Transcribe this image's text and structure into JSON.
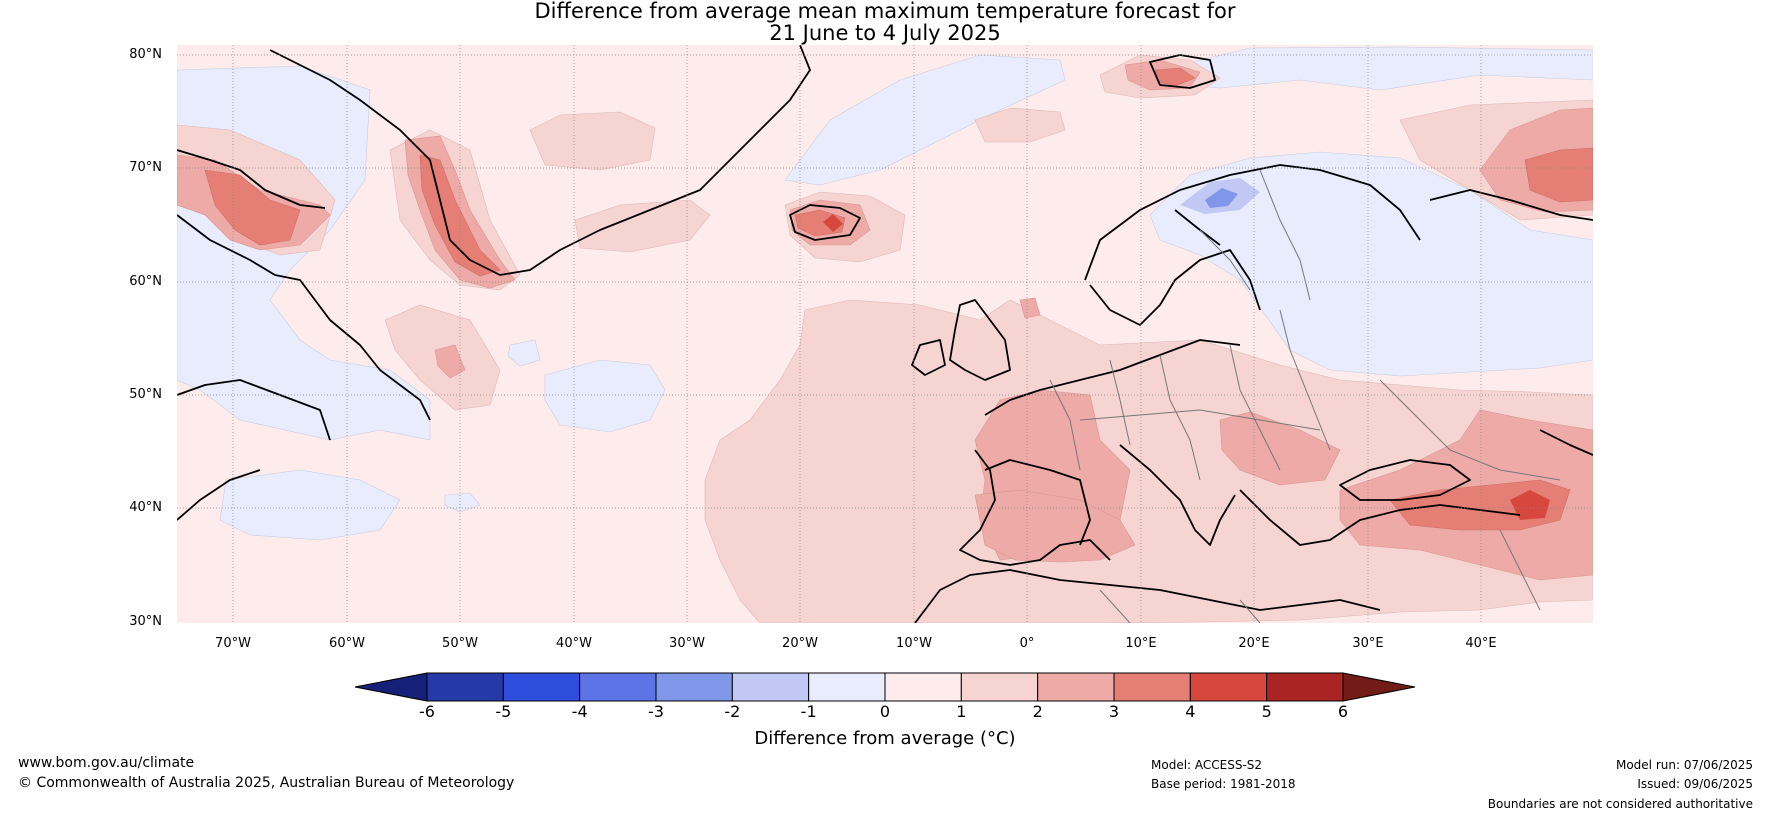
{
  "title_line1": "Difference from average mean maximum temperature forecast for",
  "title_line2": "21 June to 4 July 2025",
  "lat_labels": [
    "80°N",
    "70°N",
    "60°N",
    "50°N",
    "40°N",
    "30°N"
  ],
  "lon_labels": [
    "70°W",
    "60°W",
    "50°W",
    "40°W",
    "30°W",
    "20°W",
    "10°W",
    "0°",
    "10°E",
    "20°E",
    "30°E",
    "40°E"
  ],
  "colorbar": {
    "ticks": [
      "-6",
      "-5",
      "-4",
      "-3",
      "-2",
      "-1",
      "0",
      "1",
      "2",
      "3",
      "4",
      "5",
      "6"
    ],
    "colors": [
      "#2639a8",
      "#2f4ede",
      "#5c74e6",
      "#8096e8",
      "#c0c8f3",
      "#e8ecfc",
      "#fdeceb",
      "#f6d4d2",
      "#edaaa7",
      "#e57f76",
      "#d8473d",
      "#a92423"
    ],
    "under_color": "#152178",
    "over_color": "#731b17",
    "label": "Difference from average (°C)"
  },
  "footer": {
    "website": "www.bom.gov.au/climate",
    "copyright": "© Commonwealth of Australia 2025, Australian Bureau of Meteorology",
    "model": "Model: ACCESS-S2",
    "base_period": "Base period: 1981-2018",
    "model_run": "Model run: 07/06/2025",
    "issued": "Issued: 09/06/2025",
    "disclaimer": "Boundaries are not considered authoritative"
  },
  "colors": {
    "land_outline": "#000000",
    "border_outline": "#777777",
    "grid": "#888888"
  }
}
